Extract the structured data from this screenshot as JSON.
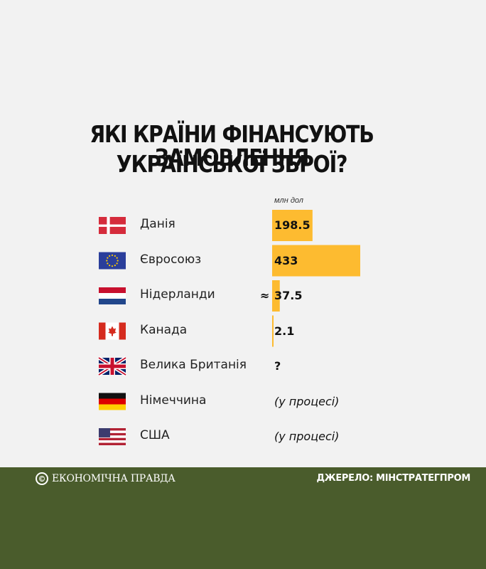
{
  "colors": {
    "bar": "#fdbb30",
    "footer_bg": "#4a5c2c",
    "background": "#f2f2f2"
  },
  "footer": {
    "brand_logo": "©",
    "brand_name": "ЕКОНОМІЧНА ПРАВДА",
    "source": "ДЖЕРЕЛО: МІНСТРАТЕГПРОМ"
  },
  "chart_data": {
    "type": "bar",
    "orientation": "horizontal",
    "title_lines": [
      "ЯКІ КРАЇНИ ФІНАНСУЮТЬ ЗАМОВЛЕННЯ",
      "УКРАЇНСЬКОЇ ЗБРОЇ?"
    ],
    "unit": "млн дол",
    "categories": [
      "Данія",
      "Євросоюз",
      "Нідерланди",
      "Канада",
      "Велика Британія",
      "Німеччина",
      "США"
    ],
    "flags": [
      "denmark-flag-icon",
      "eu-flag-icon",
      "netherlands-flag-icon",
      "canada-flag-icon",
      "uk-flag-icon",
      "germany-flag-icon",
      "usa-flag-icon"
    ],
    "values": [
      198.5,
      433,
      37.5,
      2.1,
      null,
      null,
      null
    ],
    "labels": [
      "198.5",
      "433",
      "37.5",
      "2.1",
      "?",
      "(у процесі)",
      "(у процесі)"
    ],
    "approx_marker": [
      "",
      "",
      "≈",
      "",
      "",
      "",
      ""
    ],
    "xlim": [
      0,
      433
    ]
  }
}
